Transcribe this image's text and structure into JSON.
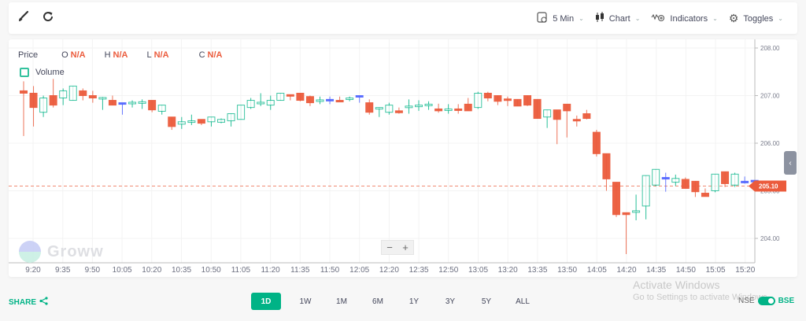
{
  "toolbar": {
    "left_icons": [
      "brush-icon",
      "refresh-icon"
    ],
    "interval": "5 Min",
    "chart_type": "Chart",
    "indicators": "Indicators",
    "toggles": "Toggles"
  },
  "legend": {
    "price_label": "Price",
    "o_label": "O",
    "o_value": "N/A",
    "h_label": "H",
    "h_value": "N/A",
    "l_label": "L",
    "l_value": "N/A",
    "c_label": "C",
    "c_value": "N/A",
    "volume_label": "Volume"
  },
  "watermark": "Groww",
  "zoom": {
    "minus": "−",
    "plus": "+"
  },
  "side_tab": "‹",
  "current_price_label": "205.10",
  "colors": {
    "up": "#00b386",
    "down": "#eb5b3c",
    "neutral": "#5367ff",
    "accent": "#00b386"
  },
  "bottom": {
    "share": "SHARE",
    "ranges": [
      "1D",
      "1W",
      "1M",
      "6M",
      "1Y",
      "3Y",
      "5Y",
      "ALL"
    ],
    "active_range": "1D",
    "exchange_left": "NSE",
    "exchange_right": "BSE"
  },
  "overlay": {
    "line1": "Activate Windows",
    "line2": "Go to Settings to activate Windows."
  },
  "chart_data": {
    "type": "candlestick",
    "title": "",
    "xlabel": "",
    "ylabel": "Price",
    "ylim": [
      203.65,
      208.1
    ],
    "y_ticks": [
      "208.00",
      "207.00",
      "206.00",
      "205.00",
      "204.00"
    ],
    "x_ticks": [
      "9:20",
      "9:35",
      "9:50",
      "10:05",
      "10:20",
      "10:35",
      "10:50",
      "11:05",
      "11:20",
      "11:35",
      "11:50",
      "12:05",
      "12:20",
      "12:35",
      "12:50",
      "13:05",
      "13:20",
      "13:35",
      "13:50",
      "14:05",
      "14:20",
      "14:35",
      "14:50",
      "15:05",
      "15:20"
    ],
    "current_price": 205.1,
    "grid": true,
    "candles": [
      {
        "o": 207.1,
        "h": 207.3,
        "l": 206.15,
        "c": 207.05
      },
      {
        "o": 207.05,
        "h": 207.2,
        "l": 206.35,
        "c": 206.75
      },
      {
        "o": 206.65,
        "h": 207.0,
        "l": 206.55,
        "c": 206.95
      },
      {
        "o": 207.0,
        "h": 207.35,
        "l": 206.75,
        "c": 206.8
      },
      {
        "o": 206.95,
        "h": 207.15,
        "l": 206.8,
        "c": 207.1
      },
      {
        "o": 206.9,
        "h": 207.2,
        "l": 206.9,
        "c": 207.2
      },
      {
        "o": 207.1,
        "h": 207.15,
        "l": 206.9,
        "c": 207.0
      },
      {
        "o": 207.0,
        "h": 207.1,
        "l": 206.85,
        "c": 206.95
      },
      {
        "o": 206.95,
        "h": 206.97,
        "l": 206.7,
        "c": 206.96
      },
      {
        "o": 206.9,
        "h": 207.0,
        "l": 206.8,
        "c": 206.8
      },
      {
        "o": 206.85,
        "h": 206.85,
        "l": 206.6,
        "c": 206.85
      },
      {
        "o": 206.85,
        "h": 206.9,
        "l": 206.75,
        "c": 206.86
      },
      {
        "o": 206.85,
        "h": 206.92,
        "l": 206.72,
        "c": 206.87
      },
      {
        "o": 206.9,
        "h": 206.9,
        "l": 206.65,
        "c": 206.7
      },
      {
        "o": 206.67,
        "h": 206.8,
        "l": 206.6,
        "c": 206.8
      },
      {
        "o": 206.55,
        "h": 206.55,
        "l": 206.28,
        "c": 206.35
      },
      {
        "o": 206.4,
        "h": 206.55,
        "l": 206.3,
        "c": 206.45
      },
      {
        "o": 206.45,
        "h": 206.6,
        "l": 206.38,
        "c": 206.47
      },
      {
        "o": 206.5,
        "h": 206.5,
        "l": 206.38,
        "c": 206.42
      },
      {
        "o": 206.45,
        "h": 206.55,
        "l": 206.35,
        "c": 206.55
      },
      {
        "o": 206.44,
        "h": 206.52,
        "l": 206.42,
        "c": 206.5
      },
      {
        "o": 206.47,
        "h": 206.6,
        "l": 206.35,
        "c": 206.62
      },
      {
        "o": 206.5,
        "h": 206.8,
        "l": 206.5,
        "c": 206.8
      },
      {
        "o": 206.75,
        "h": 206.95,
        "l": 206.72,
        "c": 206.9
      },
      {
        "o": 206.85,
        "h": 207.05,
        "l": 206.78,
        "c": 206.86
      },
      {
        "o": 206.8,
        "h": 207.0,
        "l": 206.7,
        "c": 206.9
      },
      {
        "o": 206.9,
        "h": 207.05,
        "l": 206.9,
        "c": 207.05
      },
      {
        "o": 207.02,
        "h": 207.02,
        "l": 206.9,
        "c": 207.0
      },
      {
        "o": 207.05,
        "h": 207.05,
        "l": 206.88,
        "c": 206.9
      },
      {
        "o": 206.98,
        "h": 207.0,
        "l": 206.78,
        "c": 206.85
      },
      {
        "o": 206.9,
        "h": 206.98,
        "l": 206.82,
        "c": 206.91
      },
      {
        "o": 206.92,
        "h": 206.98,
        "l": 206.82,
        "c": 206.92
      },
      {
        "o": 206.9,
        "h": 206.98,
        "l": 206.88,
        "c": 206.88
      },
      {
        "o": 206.92,
        "h": 206.98,
        "l": 206.88,
        "c": 206.95
      },
      {
        "o": 207.0,
        "h": 207.0,
        "l": 206.85,
        "c": 207.0
      },
      {
        "o": 206.85,
        "h": 206.92,
        "l": 206.6,
        "c": 206.65
      },
      {
        "o": 206.72,
        "h": 206.72,
        "l": 206.55,
        "c": 206.75
      },
      {
        "o": 206.65,
        "h": 206.85,
        "l": 206.6,
        "c": 206.8
      },
      {
        "o": 206.68,
        "h": 206.75,
        "l": 206.62,
        "c": 206.64
      },
      {
        "o": 206.77,
        "h": 206.92,
        "l": 206.62,
        "c": 206.78
      },
      {
        "o": 206.78,
        "h": 206.9,
        "l": 206.68,
        "c": 206.8
      },
      {
        "o": 206.8,
        "h": 206.88,
        "l": 206.7,
        "c": 206.82
      },
      {
        "o": 206.72,
        "h": 206.83,
        "l": 206.64,
        "c": 206.68
      },
      {
        "o": 206.7,
        "h": 206.82,
        "l": 206.62,
        "c": 206.72
      },
      {
        "o": 206.72,
        "h": 206.82,
        "l": 206.62,
        "c": 206.7
      },
      {
        "o": 206.82,
        "h": 206.95,
        "l": 206.7,
        "c": 206.68
      },
      {
        "o": 206.75,
        "h": 207.08,
        "l": 206.72,
        "c": 207.05
      },
      {
        "o": 207.05,
        "h": 207.08,
        "l": 206.88,
        "c": 206.95
      },
      {
        "o": 207.0,
        "h": 207.0,
        "l": 206.8,
        "c": 206.88
      },
      {
        "o": 206.93,
        "h": 206.98,
        "l": 206.78,
        "c": 206.92
      },
      {
        "o": 206.92,
        "h": 206.92,
        "l": 206.78,
        "c": 206.78
      },
      {
        "o": 207.0,
        "h": 207.0,
        "l": 206.78,
        "c": 206.8
      },
      {
        "o": 206.92,
        "h": 206.92,
        "l": 206.72,
        "c": 206.52
      },
      {
        "o": 206.55,
        "h": 206.52,
        "l": 206.32,
        "c": 206.7
      },
      {
        "o": 206.7,
        "h": 206.7,
        "l": 205.98,
        "c": 206.5
      },
      {
        "o": 206.82,
        "h": 206.82,
        "l": 206.12,
        "c": 206.68
      },
      {
        "o": 206.5,
        "h": 206.58,
        "l": 206.35,
        "c": 206.48
      },
      {
        "o": 206.62,
        "h": 206.7,
        "l": 206.5,
        "c": 206.52
      },
      {
        "o": 206.23,
        "h": 206.28,
        "l": 205.72,
        "c": 205.78
      },
      {
        "o": 205.78,
        "h": 205.78,
        "l": 205.0,
        "c": 205.25
      },
      {
        "o": 205.18,
        "h": 205.18,
        "l": 204.45,
        "c": 204.5
      },
      {
        "o": 204.54,
        "h": 204.52,
        "l": 203.67,
        "c": 204.5
      },
      {
        "o": 204.56,
        "h": 204.92,
        "l": 204.38,
        "c": 204.58
      },
      {
        "o": 204.68,
        "h": 205.28,
        "l": 204.4,
        "c": 205.32
      },
      {
        "o": 205.12,
        "h": 205.45,
        "l": 205.1,
        "c": 205.45
      },
      {
        "o": 205.28,
        "h": 205.38,
        "l": 204.98,
        "c": 205.28
      },
      {
        "o": 205.18,
        "h": 205.34,
        "l": 205.1,
        "c": 205.26
      },
      {
        "o": 205.24,
        "h": 205.28,
        "l": 205.05,
        "c": 205.05
      },
      {
        "o": 205.2,
        "h": 205.2,
        "l": 204.87,
        "c": 204.98
      },
      {
        "o": 204.95,
        "h": 205.05,
        "l": 204.95,
        "c": 204.88
      },
      {
        "o": 205.0,
        "h": 205.32,
        "l": 204.97,
        "c": 205.35
      },
      {
        "o": 205.4,
        "h": 205.38,
        "l": 205.08,
        "c": 205.15
      },
      {
        "o": 205.12,
        "h": 205.38,
        "l": 205.08,
        "c": 205.35
      },
      {
        "o": 205.2,
        "h": 205.3,
        "l": 205.15,
        "c": 205.2
      },
      {
        "o": 205.22,
        "h": 205.22,
        "l": 205.05,
        "c": 205.22
      },
      {
        "o": 205.17,
        "h": 205.2,
        "l": 205.05,
        "c": 205.1
      }
    ]
  }
}
